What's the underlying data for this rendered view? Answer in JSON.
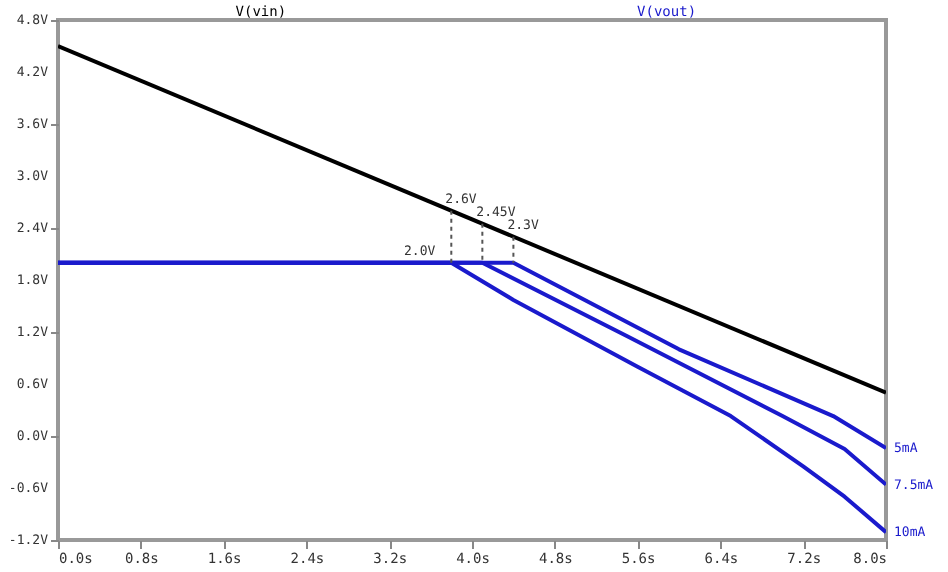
{
  "chart_data": {
    "type": "line",
    "series": [
      {
        "name": "V(vin)",
        "color": "#000000",
        "x": [
          0,
          8.0
        ],
        "values": [
          4.5,
          0.5
        ]
      },
      {
        "name": "10mA",
        "color": "#1a1acc",
        "x": [
          0,
          3.8,
          4.4,
          5.6,
          6.5,
          7.2,
          7.6,
          8.0
        ],
        "values": [
          2.0,
          2.0,
          1.57,
          0.8,
          0.23,
          -0.35,
          -0.7,
          -1.11
        ]
      },
      {
        "name": "7.5mA",
        "color": "#1a1acc",
        "x": [
          0,
          4.1,
          5.5,
          7.0,
          7.6,
          8.0
        ],
        "values": [
          2.0,
          2.0,
          1.15,
          0.23,
          -0.15,
          -0.56
        ]
      },
      {
        "name": "5mA",
        "color": "#1a1acc",
        "x": [
          0,
          4.4,
          6.0,
          7.49,
          8.0
        ],
        "values": [
          2.0,
          2.0,
          1.0,
          0.23,
          -0.14
        ]
      }
    ],
    "annotations": [
      "V(vout)",
      {
        "text": "2.6V",
        "x": 3.8,
        "y": 2.6
      },
      {
        "text": "2.45V",
        "x": 4.1,
        "y": 2.45
      },
      {
        "text": "2.3V",
        "x": 4.4,
        "y": 2.3
      },
      {
        "text": "2.0V",
        "x": 3.8,
        "y": 2.0
      }
    ],
    "xlim": [
      0,
      8.0
    ],
    "xticks": [
      {
        "value": 0,
        "label": "0.0s"
      },
      {
        "value": 0.8,
        "label": "0.8s"
      },
      {
        "value": 1.6,
        "label": "1.6s"
      },
      {
        "value": 2.4,
        "label": "2.4s"
      },
      {
        "value": 3.2,
        "label": "3.2s"
      },
      {
        "value": 4.0,
        "label": "4.0s"
      },
      {
        "value": 4.8,
        "label": "4.8s"
      },
      {
        "value": 5.6,
        "label": "5.6s"
      },
      {
        "value": 6.4,
        "label": "6.4s"
      },
      {
        "value": 7.2,
        "label": "7.2s"
      },
      {
        "value": 8.0,
        "label": "8.0s"
      }
    ],
    "ylim": [
      -1.2,
      4.8
    ],
    "yticks": [
      {
        "value": -1.2,
        "label": "-1.2V"
      },
      {
        "value": -0.6,
        "label": "-0.6V"
      },
      {
        "value": 0,
        "label": "0.0V"
      },
      {
        "value": 0.6,
        "label": "0.6V"
      },
      {
        "value": 1.2,
        "label": "1.2V"
      },
      {
        "value": 1.8,
        "label": "1.8V"
      },
      {
        "value": 2.4,
        "label": "2.4V"
      },
      {
        "value": 3.0,
        "label": "3.0V"
      },
      {
        "value": 3.6,
        "label": "3.6V"
      },
      {
        "value": 4.2,
        "label": "4.2V"
      },
      {
        "value": 4.8,
        "label": "4.8V"
      }
    ],
    "grid": false,
    "marker": "none",
    "line_style": "solid"
  }
}
